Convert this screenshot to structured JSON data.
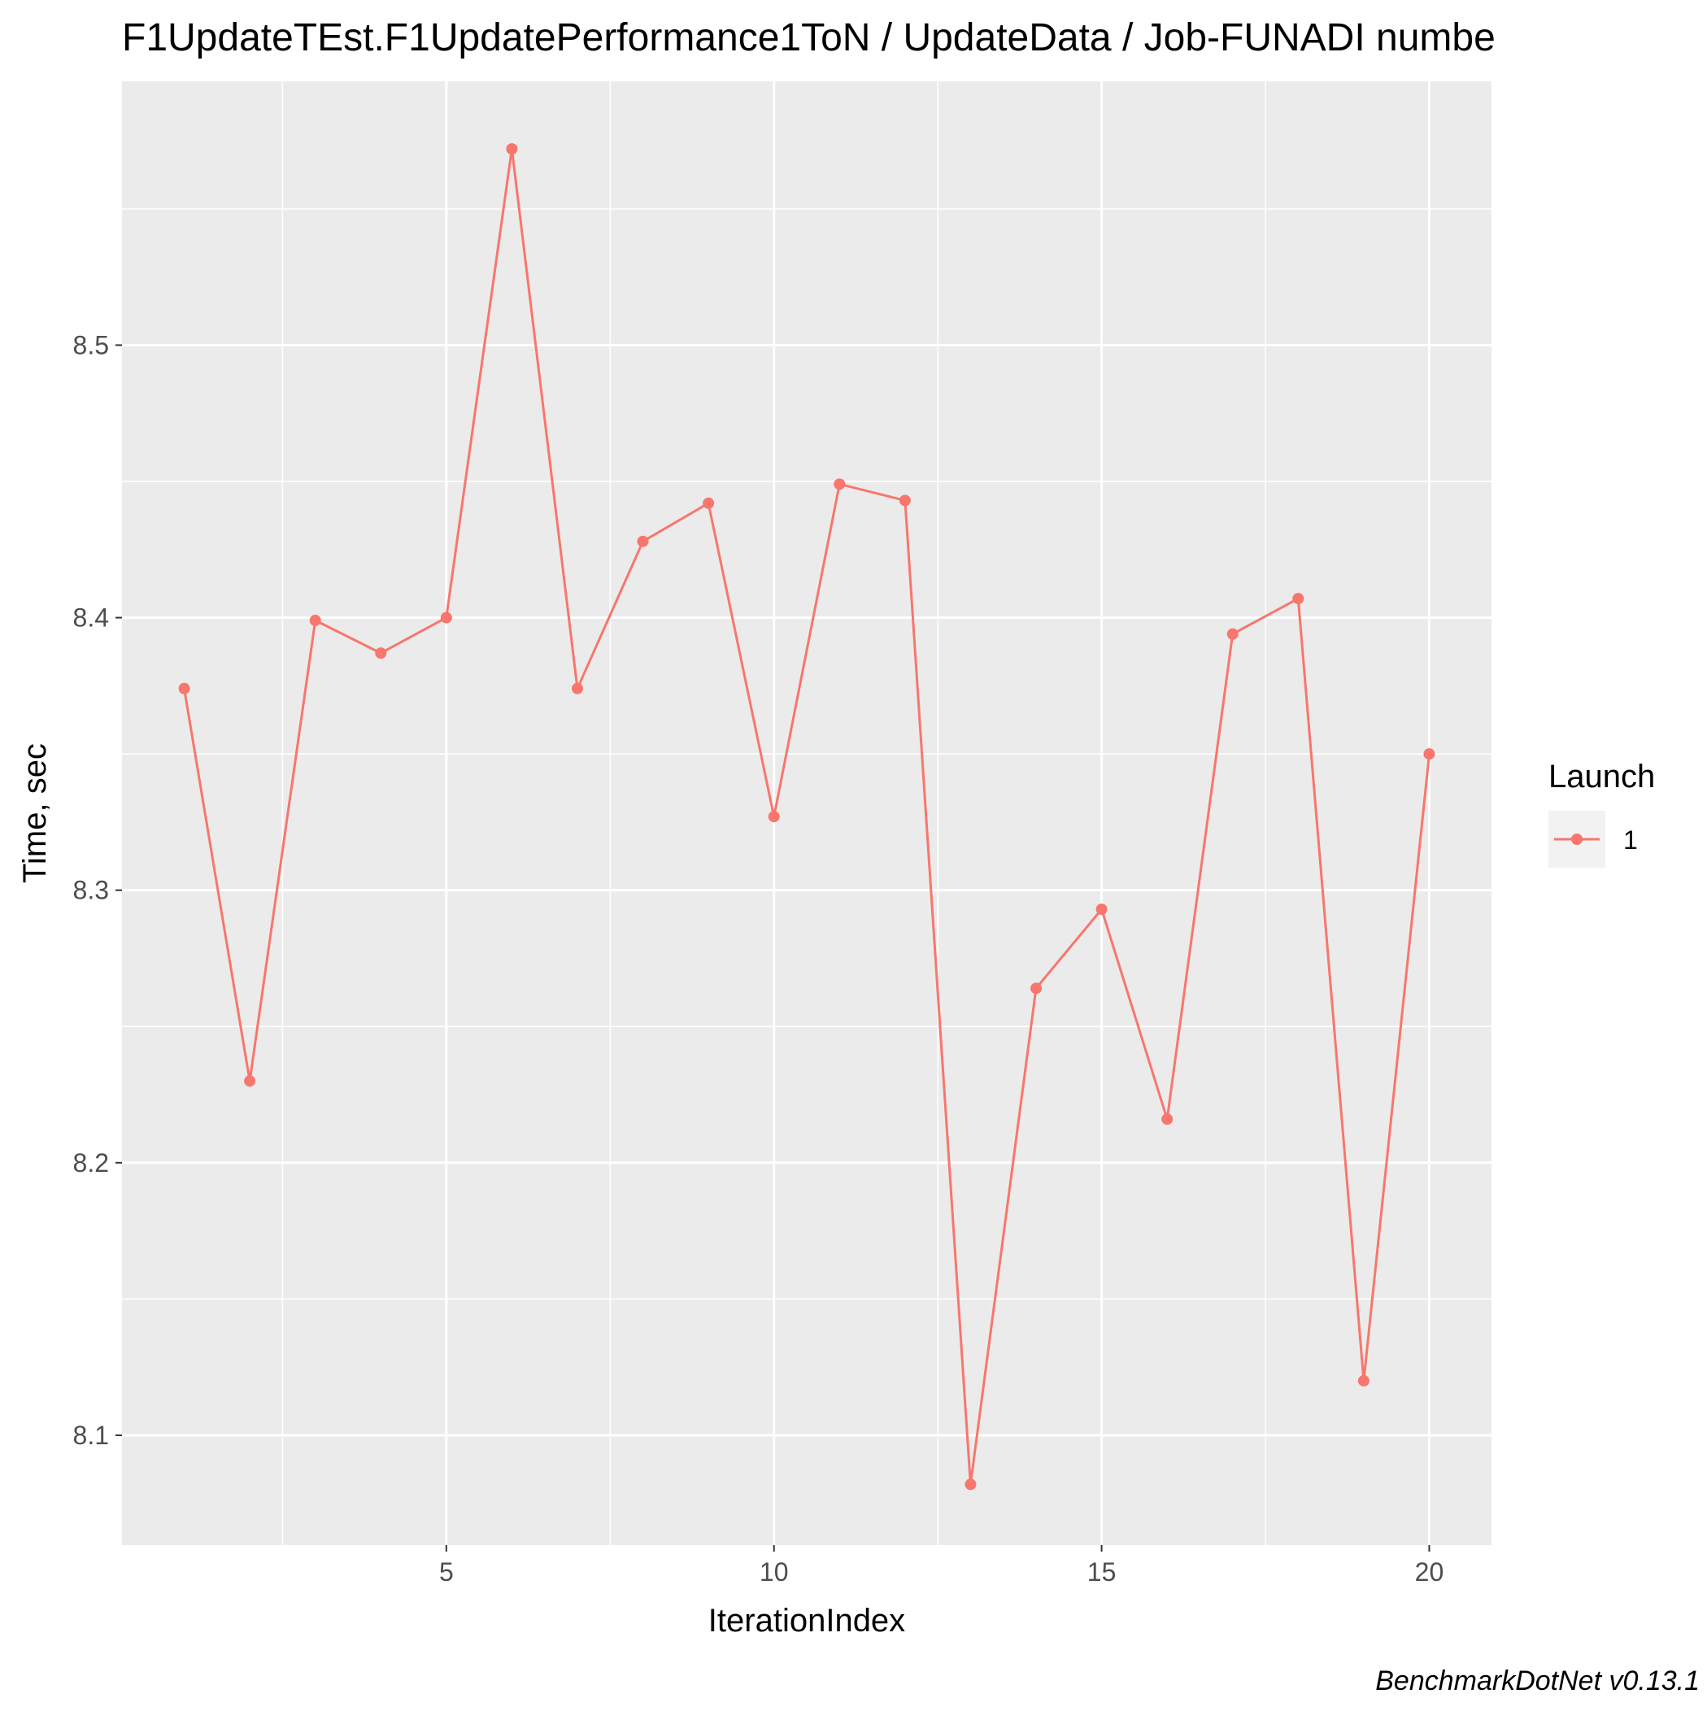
{
  "chart_data": {
    "type": "line",
    "title": "F1UpdateTEst.F1UpdatePerformance1ToN / UpdateData / Job-FUNADI numbe",
    "xlabel": "IterationIndex",
    "ylabel": "Time, sec",
    "caption": "BenchmarkDotNet v0.13.1",
    "xlim": [
      0.05,
      20.95
    ],
    "ylim": [
      8.0597,
      8.5968
    ],
    "x_ticks": [
      5,
      10,
      15,
      20
    ],
    "x_tick_labels": [
      "5",
      "10",
      "15",
      "20"
    ],
    "x_minor_ticks": [
      2.5,
      7.5,
      12.5,
      17.5
    ],
    "y_ticks": [
      8.1,
      8.2,
      8.3,
      8.4,
      8.5
    ],
    "y_tick_labels": [
      "8.1",
      "8.2",
      "8.3",
      "8.4",
      "8.5"
    ],
    "y_minor_ticks": [
      8.15,
      8.25,
      8.35,
      8.45,
      8.55
    ],
    "grid": true,
    "legend": {
      "title": "Launch",
      "position": "right"
    },
    "series": [
      {
        "name": "1",
        "color": "#F8766D",
        "x": [
          1,
          2,
          3,
          4,
          5,
          6,
          7,
          8,
          9,
          10,
          11,
          12,
          13,
          14,
          15,
          16,
          17,
          18,
          19,
          20
        ],
        "values": [
          8.374,
          8.23,
          8.399,
          8.387,
          8.4,
          8.572,
          8.374,
          8.428,
          8.442,
          8.327,
          8.449,
          8.443,
          8.082,
          8.264,
          8.293,
          8.216,
          8.394,
          8.407,
          8.12,
          8.35
        ]
      }
    ]
  }
}
